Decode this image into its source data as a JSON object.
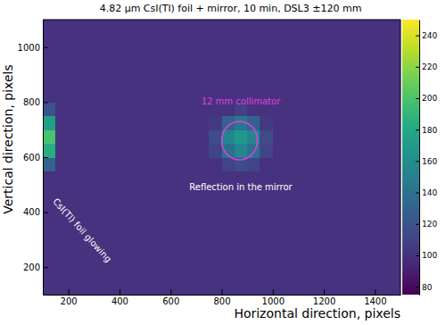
{
  "chart_data": {
    "type": "heatmap",
    "title": "4.82 µm CsI(Tl) foil + mirror, 10 min, DSL3 ±120 mm",
    "x_label": "Horizontal direction, pixels",
    "y_label": "Vertical direction, pixels",
    "xlim": [
      100,
      1500
    ],
    "ylim": [
      100,
      1100
    ],
    "xticks": [
      200,
      400,
      600,
      800,
      1000,
      1200,
      1400
    ],
    "yticks": [
      200,
      400,
      600,
      800,
      1000
    ],
    "xbins": [
      100,
      150,
      200,
      250,
      300,
      350,
      400,
      450,
      500,
      550,
      600,
      650,
      700,
      750,
      800,
      850,
      900,
      950,
      1000,
      1050,
      1100,
      1150,
      1200,
      1250,
      1300,
      1350,
      1400,
      1450,
      1500
    ],
    "ybins": [
      100,
      150,
      200,
      250,
      300,
      350,
      400,
      450,
      500,
      550,
      600,
      650,
      700,
      750,
      800,
      850,
      900,
      950,
      1000,
      1050,
      1100
    ],
    "values": [
      [
        100,
        100,
        100,
        100,
        100,
        100,
        100,
        100,
        100,
        100,
        100,
        100,
        100,
        100,
        100,
        100,
        100,
        100,
        100,
        100,
        100,
        100,
        100,
        100,
        100,
        100,
        100,
        100
      ],
      [
        100,
        100,
        100,
        100,
        100,
        100,
        100,
        100,
        100,
        100,
        100,
        100,
        100,
        100,
        100,
        100,
        100,
        100,
        100,
        100,
        100,
        100,
        100,
        100,
        100,
        100,
        100,
        100
      ],
      [
        100,
        100,
        100,
        100,
        100,
        100,
        100,
        100,
        100,
        100,
        100,
        100,
        100,
        100,
        100,
        100,
        100,
        100,
        100,
        100,
        100,
        100,
        100,
        100,
        100,
        100,
        100,
        100
      ],
      [
        100,
        100,
        100,
        100,
        100,
        100,
        100,
        100,
        100,
        100,
        100,
        100,
        100,
        100,
        100,
        100,
        100,
        100,
        100,
        100,
        100,
        100,
        100,
        100,
        100,
        100,
        100,
        100
      ],
      [
        100,
        100,
        100,
        100,
        100,
        100,
        100,
        100,
        100,
        100,
        100,
        100,
        100,
        100,
        100,
        100,
        100,
        100,
        100,
        100,
        100,
        100,
        100,
        100,
        100,
        100,
        100,
        100
      ],
      [
        100,
        100,
        100,
        100,
        100,
        100,
        100,
        100,
        100,
        100,
        100,
        100,
        100,
        100,
        100,
        100,
        100,
        100,
        100,
        100,
        100,
        100,
        100,
        100,
        100,
        100,
        100,
        100
      ],
      [
        100,
        100,
        100,
        100,
        100,
        100,
        100,
        100,
        100,
        100,
        100,
        100,
        100,
        100,
        100,
        100,
        100,
        100,
        100,
        100,
        100,
        100,
        100,
        100,
        100,
        100,
        100,
        100
      ],
      [
        100,
        100,
        100,
        100,
        100,
        100,
        100,
        100,
        100,
        100,
        100,
        100,
        100,
        100,
        100,
        100,
        100,
        100,
        100,
        100,
        100,
        100,
        100,
        100,
        100,
        100,
        100,
        100
      ],
      [
        100,
        100,
        100,
        100,
        100,
        100,
        100,
        100,
        100,
        100,
        100,
        100,
        100,
        100,
        100,
        100,
        100,
        100,
        100,
        100,
        100,
        100,
        100,
        100,
        100,
        100,
        100,
        100
      ],
      [
        130,
        100,
        100,
        100,
        100,
        100,
        100,
        100,
        100,
        100,
        100,
        100,
        100,
        100,
        110,
        115,
        110,
        100,
        100,
        100,
        100,
        100,
        100,
        100,
        100,
        100,
        100,
        100
      ],
      [
        185,
        100,
        100,
        100,
        100,
        100,
        100,
        100,
        100,
        100,
        100,
        100,
        100,
        110,
        140,
        155,
        140,
        110,
        100,
        100,
        100,
        100,
        100,
        100,
        100,
        100,
        100,
        100
      ],
      [
        200,
        100,
        100,
        100,
        100,
        100,
        100,
        100,
        100,
        100,
        100,
        100,
        100,
        115,
        155,
        170,
        155,
        115,
        100,
        100,
        100,
        100,
        100,
        100,
        100,
        100,
        100,
        100
      ],
      [
        175,
        100,
        100,
        100,
        100,
        100,
        100,
        100,
        100,
        100,
        100,
        100,
        100,
        105,
        130,
        145,
        130,
        105,
        100,
        100,
        100,
        100,
        100,
        100,
        100,
        100,
        100,
        100
      ],
      [
        120,
        100,
        100,
        100,
        100,
        100,
        100,
        100,
        100,
        100,
        100,
        100,
        100,
        100,
        100,
        108,
        100,
        100,
        100,
        100,
        100,
        100,
        100,
        100,
        100,
        100,
        100,
        100
      ],
      [
        100,
        100,
        100,
        100,
        100,
        100,
        100,
        100,
        100,
        100,
        100,
        100,
        100,
        100,
        100,
        100,
        100,
        100,
        100,
        100,
        100,
        100,
        100,
        100,
        100,
        100,
        100,
        100
      ],
      [
        100,
        100,
        100,
        100,
        100,
        100,
        100,
        100,
        100,
        100,
        100,
        100,
        100,
        100,
        100,
        100,
        100,
        100,
        100,
        100,
        100,
        100,
        100,
        100,
        100,
        100,
        100,
        100
      ],
      [
        100,
        100,
        100,
        100,
        100,
        100,
        100,
        100,
        100,
        100,
        100,
        100,
        100,
        100,
        100,
        100,
        100,
        100,
        100,
        100,
        100,
        100,
        100,
        100,
        100,
        100,
        100,
        100
      ],
      [
        100,
        100,
        100,
        100,
        100,
        100,
        100,
        100,
        100,
        100,
        100,
        100,
        100,
        100,
        100,
        100,
        100,
        100,
        100,
        100,
        100,
        100,
        100,
        100,
        100,
        100,
        100,
        100
      ],
      [
        100,
        100,
        100,
        100,
        100,
        100,
        100,
        100,
        100,
        100,
        100,
        100,
        100,
        100,
        100,
        100,
        100,
        100,
        100,
        100,
        100,
        100,
        100,
        100,
        100,
        100,
        100,
        100
      ],
      [
        100,
        100,
        100,
        100,
        100,
        100,
        100,
        100,
        100,
        100,
        100,
        100,
        100,
        100,
        100,
        100,
        100,
        100,
        100,
        100,
        100,
        100,
        100,
        100,
        100,
        100,
        100,
        100
      ]
    ],
    "color_range": [
      75,
      250
    ],
    "color_ticks": [
      80,
      100,
      120,
      140,
      160,
      180,
      200,
      220,
      240
    ],
    "collimator": {
      "x": 870,
      "y": 660,
      "r": 70,
      "color": "#e040e0"
    },
    "annotations": [
      {
        "text": "12 mm collimator",
        "x": 875,
        "y": 790,
        "color": "#e040e0"
      },
      {
        "text": "Reflection in the mirror",
        "x": 875,
        "y": 480,
        "color": "#ffffff"
      },
      {
        "text": "CsI(Tl) foil glowing",
        "x": 254,
        "y": 334,
        "color": "#ffffff"
      }
    ]
  }
}
